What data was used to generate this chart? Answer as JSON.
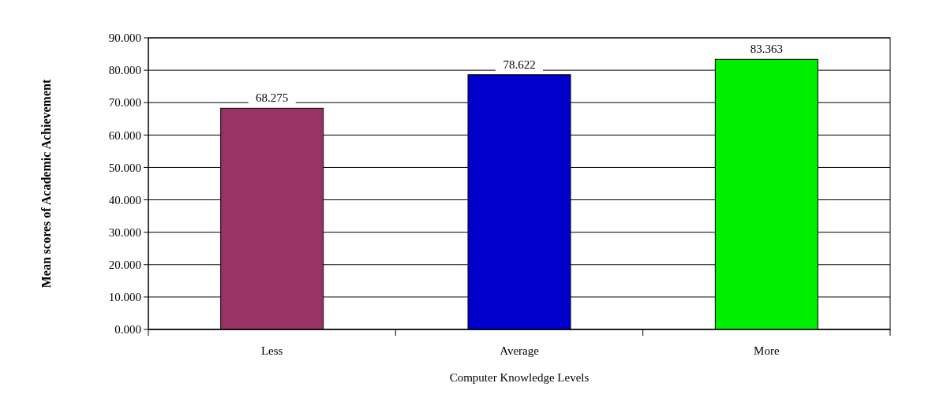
{
  "chart_data": {
    "type": "bar",
    "xlabel": "Computer Knowledge Levels",
    "ylabel": "Mean scores of Academic Achievement",
    "categories": [
      "Less",
      "Average",
      "More"
    ],
    "values": [
      68.275,
      78.622,
      83.363
    ],
    "colors": [
      "#993366",
      "#0000cc",
      "#00ee00"
    ],
    "data_labels": true,
    "grid": "y",
    "ylim": [
      0,
      90
    ],
    "yticks": [
      {
        "value": 0,
        "label": "0.000"
      },
      {
        "value": 10,
        "label": "10.000"
      },
      {
        "value": 20,
        "label": "20.000"
      },
      {
        "value": 30,
        "label": "30.000"
      },
      {
        "value": 40,
        "label": "40.000"
      },
      {
        "value": 50,
        "label": "50.000"
      },
      {
        "value": 60,
        "label": "60.000"
      },
      {
        "value": 70,
        "label": "70.000"
      },
      {
        "value": 80,
        "label": "80.000"
      },
      {
        "value": 90,
        "label": "90.000"
      }
    ]
  }
}
